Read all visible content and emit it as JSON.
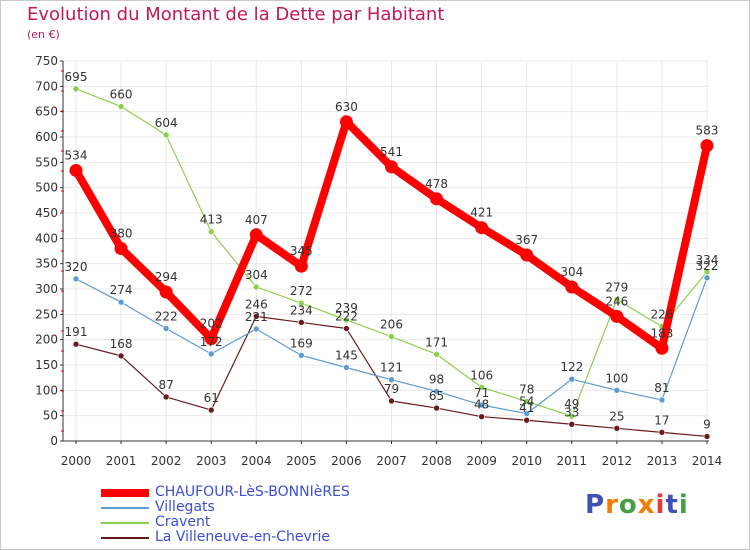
{
  "title": "Evolution du Montant de la Dette par Habitant",
  "subtitle": "(en €)",
  "logo": {
    "text": "Proxiti",
    "colors": [
      "#3f51b5",
      "#f57c00",
      "#43a047",
      "#f57c00",
      "#e53935",
      "#3f51b5",
      "#43a047"
    ]
  },
  "colors": {
    "title": "#c2185b",
    "legend_text": "#3a4fd6",
    "axis": "#333333",
    "grid": "#e8e8e8"
  },
  "chart_data": {
    "type": "line",
    "title": "Evolution du Montant de la Dette par Habitant",
    "ylabel": "(en €)",
    "xlabel": "",
    "x": [
      "2000",
      "2001",
      "2002",
      "2003",
      "2004",
      "2005",
      "2006",
      "2007",
      "2008",
      "2009",
      "2010",
      "2011",
      "2012",
      "2013",
      "2014"
    ],
    "ylim": [
      0,
      750
    ],
    "yticks": [
      "0",
      "50",
      "100",
      "150",
      "200",
      "250",
      "300",
      "350",
      "400",
      "450",
      "500",
      "550",
      "600",
      "650",
      "700",
      "750"
    ],
    "legend_position": "bottom-left",
    "series": [
      {
        "name": "CHAUFOUR-LèS-BONNIèRES",
        "color": "#ff0000",
        "values": [
          534,
          380,
          294,
          202,
          407,
          345,
          630,
          541,
          478,
          421,
          367,
          304,
          246,
          183,
          583
        ]
      },
      {
        "name": "Villegats",
        "color": "#5b9bd5",
        "values": [
          320,
          274,
          222,
          172,
          221,
          169,
          145,
          121,
          98,
          71,
          54,
          122,
          100,
          81,
          322
        ]
      },
      {
        "name": "Cravent",
        "color": "#8ad14b",
        "values": [
          695,
          660,
          604,
          413,
          304,
          272,
          239,
          206,
          171,
          106,
          78,
          49,
          279,
          226,
          334
        ]
      },
      {
        "name": "La Villeneuve-en-Chevrie",
        "color": "#6b1a1a",
        "values": [
          191,
          168,
          87,
          61,
          246,
          234,
          222,
          79,
          65,
          48,
          41,
          33,
          25,
          17,
          9
        ]
      }
    ]
  }
}
